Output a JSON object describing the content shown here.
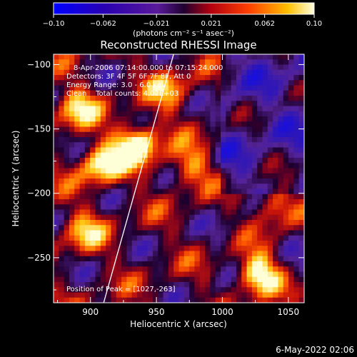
{
  "chart_data": {
    "type": "heatmap",
    "title": "Reconstructed RHESSI Image",
    "xlabel": "Heliocentric X (arcsec)",
    "ylabel": "Heliocentric Y (arcsec)",
    "xlim": [
      872,
      1062
    ],
    "ylim": [
      -285,
      -92
    ],
    "x_ticks": [
      900,
      950,
      1000,
      1050
    ],
    "y_ticks": [
      -100,
      -150,
      -200,
      -250
    ],
    "x_tick_labels": [
      "900",
      "950",
      "1000",
      "1050"
    ],
    "y_tick_labels": [
      "−100",
      "−150",
      "−200",
      "−250"
    ],
    "colorbar": {
      "min": -0.1,
      "max": 0.1,
      "ticks": [
        -0.1,
        -0.062,
        -0.021,
        0.021,
        0.062,
        0.1
      ],
      "tick_labels": [
        "−0.10",
        "−0.062",
        "−0.021",
        "0.021",
        "0.062",
        "0.10"
      ],
      "units_label": "(photons cm⁻² s⁻¹ asec⁻²)"
    },
    "annotations": [
      "8-Apr-2006 07:14:00.000 to 07:15:24.000",
      "Detectors: 3F 4F 5F 6F 7F 8F, Att 0",
      "Energy Range: 3.0 - 6.0 keV",
      "Clean    Total counts: 4.02E+03"
    ],
    "peak_label": "Position of Peak = [1027,-263]",
    "peak_position": [
      1027,
      -263
    ],
    "limb_line": [
      [
        910,
        -285
      ],
      [
        963,
        -92
      ]
    ],
    "hot_spots": [
      {
        "x": 935,
        "y": -162,
        "value": 0.1
      },
      {
        "x": 908,
        "y": -178,
        "value": 0.08
      },
      {
        "x": 1027,
        "y": -263,
        "value": 0.1
      },
      {
        "x": 890,
        "y": -135,
        "value": 0.06
      },
      {
        "x": 960,
        "y": -120,
        "value": 0.05
      },
      {
        "x": 975,
        "y": -180,
        "value": 0.05
      },
      {
        "x": 1040,
        "y": -210,
        "value": 0.06
      },
      {
        "x": 895,
        "y": -230,
        "value": 0.05
      }
    ]
  },
  "footer": {
    "timestamp": "6-May-2022 02:06"
  }
}
